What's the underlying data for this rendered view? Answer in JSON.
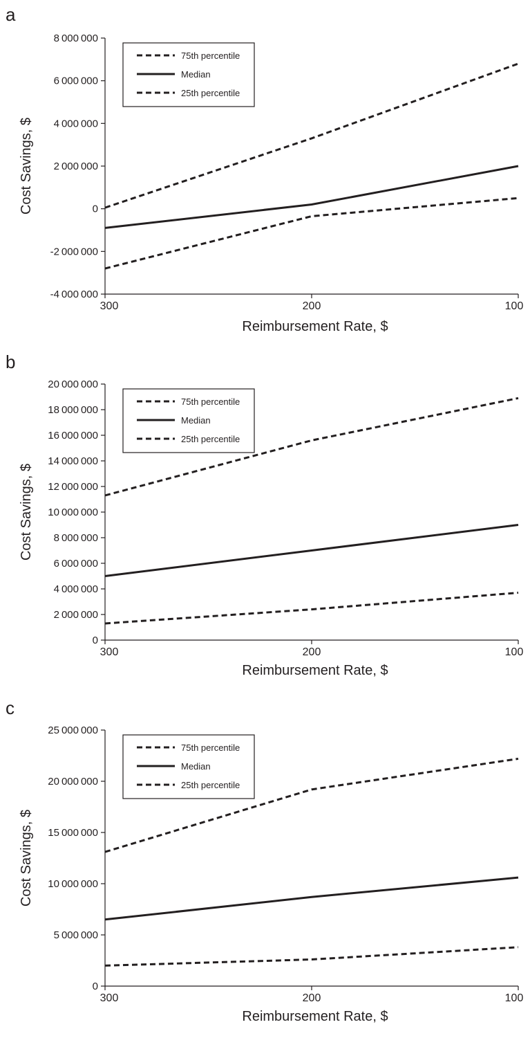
{
  "chart_data": [
    {
      "panel_label": "a",
      "type": "line",
      "x": [
        300,
        200,
        100
      ],
      "x_ticks": [
        "300",
        "200",
        "100"
      ],
      "xlabel": "Reimbursement Rate, $",
      "ylabel": "Cost Savings, $",
      "ylim": [
        -4000000,
        8000000
      ],
      "y_ticks": [
        "-4000000",
        "-2000000",
        "0",
        "2000000",
        "4000000",
        "6000000",
        "8000000"
      ],
      "y_tick_values": [
        -4000000,
        -2000000,
        0,
        2000000,
        4000000,
        6000000,
        8000000
      ],
      "grid": false,
      "legend_position": "top-left",
      "series": [
        {
          "name": "75th percentile",
          "style": "dashed",
          "values": [
            50000,
            3300000,
            6800000
          ]
        },
        {
          "name": "Median",
          "style": "solid",
          "values": [
            -900000,
            200000,
            2000000
          ]
        },
        {
          "name": "25th percentile",
          "style": "dashed",
          "values": [
            -2800000,
            -350000,
            500000
          ]
        }
      ]
    },
    {
      "panel_label": "b",
      "type": "line",
      "x": [
        300,
        200,
        100
      ],
      "x_ticks": [
        "300",
        "200",
        "100"
      ],
      "xlabel": "Reimbursement Rate, $",
      "ylabel": "Cost Savings, $",
      "ylim": [
        0,
        20000000
      ],
      "y_ticks": [
        "0",
        "2000000",
        "4000000",
        "6000000",
        "8000000",
        "10000000",
        "12000000",
        "14000000",
        "16000000",
        "18000000",
        "20000000"
      ],
      "y_tick_values": [
        0,
        2000000,
        4000000,
        6000000,
        8000000,
        10000000,
        12000000,
        14000000,
        16000000,
        18000000,
        20000000
      ],
      "grid": false,
      "legend_position": "top-left",
      "series": [
        {
          "name": "75th percentile",
          "style": "dashed",
          "values": [
            11300000,
            15600000,
            18900000
          ]
        },
        {
          "name": "Median",
          "style": "solid",
          "values": [
            5000000,
            7000000,
            9000000
          ]
        },
        {
          "name": "25th percentile",
          "style": "dashed",
          "values": [
            1300000,
            2400000,
            3700000
          ]
        }
      ]
    },
    {
      "panel_label": "c",
      "type": "line",
      "x": [
        300,
        200,
        100
      ],
      "x_ticks": [
        "300",
        "200",
        "100"
      ],
      "xlabel": "Reimbursement Rate, $",
      "ylabel": "Cost Savings, $",
      "ylim": [
        0,
        25000000
      ],
      "y_ticks": [
        "0",
        "5000000",
        "10000000",
        "15000000",
        "20000000",
        "25000000"
      ],
      "y_tick_values": [
        0,
        5000000,
        10000000,
        15000000,
        20000000,
        25000000
      ],
      "grid": false,
      "legend_position": "top-left",
      "series": [
        {
          "name": "75th percentile",
          "style": "dashed",
          "values": [
            13100000,
            19200000,
            22200000
          ]
        },
        {
          "name": "Median",
          "style": "solid",
          "values": [
            6500000,
            8700000,
            10600000
          ]
        },
        {
          "name": "25th percentile",
          "style": "dashed",
          "values": [
            2000000,
            2600000,
            3800000
          ]
        }
      ]
    }
  ]
}
